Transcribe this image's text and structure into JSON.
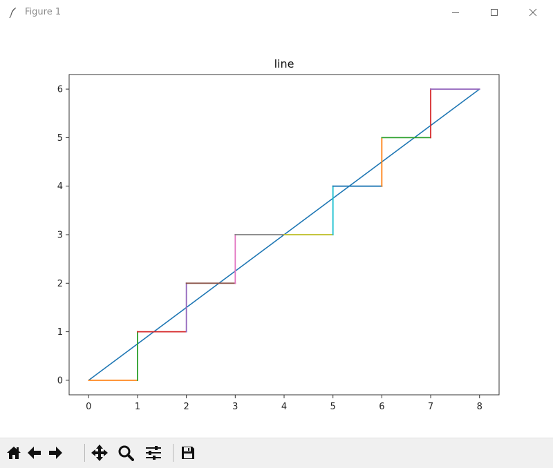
{
  "window": {
    "title": "Figure 1",
    "controls": [
      "minimize",
      "maximize",
      "close"
    ]
  },
  "toolbar": {
    "buttons": [
      {
        "name": "home",
        "icon": "home-icon"
      },
      {
        "name": "back",
        "icon": "arrow-left-icon"
      },
      {
        "name": "forward",
        "icon": "arrow-right-icon"
      },
      {
        "name": "pan",
        "icon": "move-icon"
      },
      {
        "name": "zoom",
        "icon": "magnifier-icon"
      },
      {
        "name": "configure-subplots",
        "icon": "sliders-icon"
      },
      {
        "name": "save",
        "icon": "floppy-disk-icon"
      }
    ]
  },
  "chart_data": {
    "type": "line",
    "title": "line",
    "xlabel": "",
    "ylabel": "",
    "xlim": [
      -0.4,
      8.4
    ],
    "ylim": [
      -0.3,
      6.3
    ],
    "xticks": [
      0,
      1,
      2,
      3,
      4,
      5,
      6,
      7,
      8
    ],
    "yticks": [
      0,
      1,
      2,
      3,
      4,
      5,
      6
    ],
    "grid": false,
    "diagonal": {
      "x": [
        0,
        8
      ],
      "y": [
        0,
        6
      ],
      "color": "#1f77b4"
    },
    "step_segments": [
      {
        "x": [
          0,
          1
        ],
        "y": [
          0,
          0
        ],
        "color": "#ff7f0e"
      },
      {
        "x": [
          1,
          1
        ],
        "y": [
          0,
          1
        ],
        "color": "#2ca02c"
      },
      {
        "x": [
          1,
          2
        ],
        "y": [
          1,
          1
        ],
        "color": "#d62728"
      },
      {
        "x": [
          2,
          2
        ],
        "y": [
          1,
          2
        ],
        "color": "#9467bd"
      },
      {
        "x": [
          2,
          3
        ],
        "y": [
          2,
          2
        ],
        "color": "#8c564b"
      },
      {
        "x": [
          3,
          3
        ],
        "y": [
          2,
          3
        ],
        "color": "#e377c2"
      },
      {
        "x": [
          3,
          4
        ],
        "y": [
          3,
          3
        ],
        "color": "#7f7f7f"
      },
      {
        "x": [
          4,
          5
        ],
        "y": [
          3,
          3
        ],
        "color": "#bcbd22"
      },
      {
        "x": [
          5,
          5
        ],
        "y": [
          3,
          4
        ],
        "color": "#17becf"
      },
      {
        "x": [
          5,
          6
        ],
        "y": [
          4,
          4
        ],
        "color": "#1f77b4"
      },
      {
        "x": [
          6,
          6
        ],
        "y": [
          4,
          5
        ],
        "color": "#ff7f0e"
      },
      {
        "x": [
          6,
          7
        ],
        "y": [
          5,
          5
        ],
        "color": "#2ca02c"
      },
      {
        "x": [
          7,
          7
        ],
        "y": [
          5,
          6
        ],
        "color": "#d62728"
      },
      {
        "x": [
          7,
          8
        ],
        "y": [
          6,
          6
        ],
        "color": "#9467bd"
      }
    ]
  }
}
